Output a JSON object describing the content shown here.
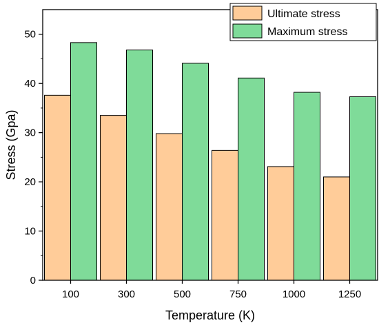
{
  "chart_data": {
    "type": "bar",
    "title": "",
    "xlabel": "Temperature (K)",
    "ylabel": "Stress (Gpa)",
    "categories": [
      "100",
      "300",
      "500",
      "750",
      "1000",
      "1250"
    ],
    "series": [
      {
        "name": "Ultimate stress",
        "values": [
          37.6,
          33.5,
          29.8,
          26.4,
          23.1,
          21.0
        ],
        "color": "#FFCC99"
      },
      {
        "name": "Maximum stress",
        "values": [
          48.3,
          46.8,
          44.1,
          41.1,
          38.2,
          37.3
        ],
        "color": "#7FDB99"
      }
    ],
    "ylim": [
      0,
      55
    ],
    "yticks": [
      0,
      10,
      20,
      30,
      40,
      50
    ],
    "legend_position": "top-right",
    "grid": false
  }
}
